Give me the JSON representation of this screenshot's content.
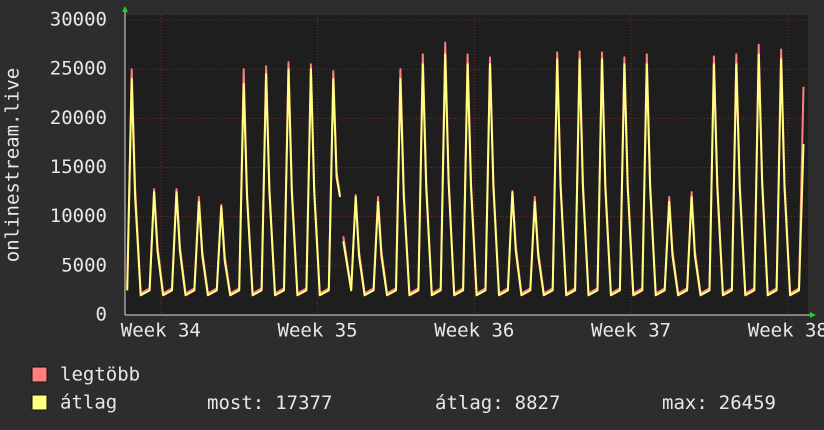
{
  "chart_data": {
    "type": "line",
    "y_label": "onlinestream.live",
    "x": [
      0.1,
      0.3,
      0.45,
      0.7,
      1.1,
      1.3,
      1.45,
      1.7,
      2.1,
      2.3,
      2.45,
      2.7,
      3.1,
      3.3,
      3.45,
      3.7,
      4.1,
      4.3,
      4.45,
      4.7,
      5.1,
      5.3,
      5.45,
      5.7,
      6.1,
      6.3,
      6.45,
      6.7,
      7.1,
      7.3,
      7.45,
      7.7,
      8.1,
      8.3,
      8.45,
      8.7,
      9.1,
      9.3,
      9.45,
      9.6,
      9.65,
      9.75,
      10.1,
      10.3,
      10.45,
      10.7,
      11.1,
      11.3,
      11.45,
      11.7,
      12.1,
      12.3,
      12.45,
      12.7,
      13.1,
      13.3,
      13.45,
      13.7,
      14.1,
      14.3,
      14.45,
      14.7,
      15.1,
      15.3,
      15.45,
      15.7,
      16.1,
      16.3,
      16.45,
      16.7,
      17.1,
      17.3,
      17.45,
      17.7,
      18.1,
      18.3,
      18.45,
      18.7,
      19.1,
      19.3,
      19.45,
      19.7,
      20.1,
      20.3,
      20.45,
      20.7,
      21.1,
      21.3,
      21.45,
      21.7,
      22.1,
      22.3,
      22.45,
      22.7,
      23.1,
      23.3,
      23.45,
      23.7,
      24.1,
      24.3,
      24.45,
      24.7,
      25.1,
      25.3,
      25.45,
      25.7,
      26.1,
      26.3,
      26.45,
      26.7,
      27.1,
      27.3,
      27.45,
      27.7,
      28.1,
      28.3,
      28.45,
      28.7,
      29.1,
      29.3,
      29.45,
      29.7,
      30.1,
      30.3
    ],
    "series": [
      {
        "name": "legtöbb",
        "color": "#ff7f7f",
        "values": [
          2700,
          25000,
          13000,
          2200,
          2700,
          12800,
          7000,
          2200,
          2700,
          12800,
          7000,
          2200,
          2700,
          12000,
          6500,
          2200,
          2700,
          11200,
          6000,
          2200,
          2700,
          25000,
          12500,
          2200,
          2700,
          25300,
          13000,
          2200,
          2700,
          25700,
          13000,
          2200,
          2700,
          25500,
          13000,
          2200,
          2700,
          24800,
          14500,
          12200,
          null,
          8000,
          2700,
          12200,
          6500,
          2200,
          2700,
          12000,
          6500,
          2200,
          2700,
          25000,
          12500,
          2200,
          2700,
          26500,
          13500,
          2200,
          2700,
          27700,
          14000,
          2200,
          2700,
          26500,
          13500,
          2200,
          2700,
          26200,
          13500,
          2200,
          2700,
          12600,
          7000,
          2200,
          2700,
          12000,
          6500,
          2200,
          2700,
          26700,
          13500,
          2200,
          2700,
          26800,
          13500,
          2200,
          2700,
          26700,
          13500,
          2200,
          2700,
          26200,
          13500,
          2200,
          2700,
          26500,
          13500,
          2200,
          2700,
          12000,
          6500,
          2200,
          2700,
          12500,
          6500,
          2200,
          2700,
          26300,
          13500,
          2200,
          2700,
          26500,
          13500,
          2200,
          2700,
          27500,
          14000,
          2200,
          2700,
          27000,
          13500,
          2200,
          2700,
          23200
        ]
      },
      {
        "name": "átlag",
        "color": "#ffff80",
        "values": [
          2500,
          24000,
          12000,
          2000,
          2500,
          12500,
          6500,
          2000,
          2500,
          12500,
          6500,
          2000,
          2500,
          11500,
          6000,
          2000,
          2500,
          11000,
          5500,
          2000,
          2500,
          23500,
          12000,
          2000,
          2500,
          24500,
          12500,
          2000,
          2500,
          25000,
          12500,
          2000,
          2500,
          25000,
          12500,
          2000,
          2500,
          24000,
          14000,
          12000,
          null,
          7500,
          2500,
          12000,
          6000,
          2000,
          2500,
          11500,
          6000,
          2000,
          2500,
          24000,
          12000,
          2000,
          2500,
          25500,
          13000,
          2000,
          2500,
          26500,
          13500,
          2000,
          2500,
          25500,
          13000,
          2000,
          2500,
          25500,
          13000,
          2000,
          2500,
          12500,
          6500,
          2000,
          2500,
          11500,
          6000,
          2000,
          2500,
          26000,
          13000,
          2000,
          2500,
          26000,
          13000,
          2000,
          2500,
          26000,
          13000,
          2000,
          2500,
          25500,
          13000,
          2000,
          2500,
          25500,
          13000,
          2000,
          2500,
          11500,
          6000,
          2000,
          2500,
          12000,
          6000,
          2000,
          2500,
          25500,
          13000,
          2000,
          2500,
          25500,
          13000,
          2000,
          2500,
          26500,
          13500,
          2000,
          2500,
          26000,
          13000,
          2000,
          2500,
          17377
        ]
      }
    ],
    "stats": [
      {
        "label": "most:",
        "value": 17377
      },
      {
        "label": "átlag:",
        "value": 8827
      },
      {
        "label": "max:",
        "value": 26459
      }
    ],
    "xlim": [
      0,
      30.5
    ],
    "xticks": [
      {
        "value": 1.6,
        "label": "Week 34"
      },
      {
        "value": 8.6,
        "label": "Week 35"
      },
      {
        "value": 15.6,
        "label": "Week 36"
      },
      {
        "value": 22.6,
        "label": "Week 37"
      },
      {
        "value": 29.6,
        "label": "Week 38"
      }
    ],
    "ylim": [
      0,
      30000
    ],
    "yticks": [
      0,
      5000,
      10000,
      15000,
      20000,
      25000,
      30000
    ],
    "grid": true
  }
}
